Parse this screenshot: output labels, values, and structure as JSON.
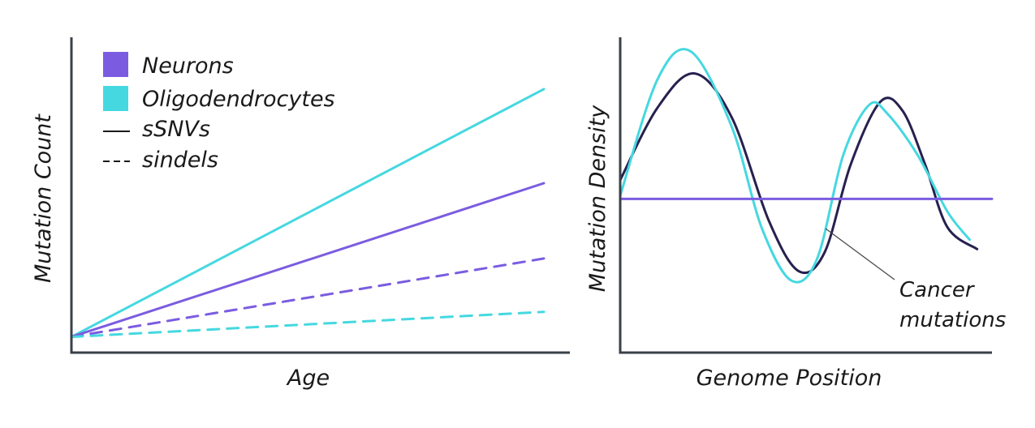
{
  "colors": {
    "neurons": "#7b5ce0",
    "oligodendrocytes": "#45d8e0",
    "cancer": "#26214f",
    "axis": "#3a3f48",
    "text": "#1a1a1a"
  },
  "chart_data": [
    {
      "type": "line",
      "title": "",
      "xlabel": "Age",
      "ylabel": "Mutation Count",
      "grid": false,
      "legend_position": "top-left",
      "legend": [
        {
          "label": "Neurons",
          "marker": "swatch",
          "color": "#7b5ce0"
        },
        {
          "label": "Oligodendrocytes",
          "marker": "swatch",
          "color": "#45d8e0"
        },
        {
          "label": "sSNVs",
          "marker": "solid-line"
        },
        {
          "label": "sindels",
          "marker": "dashed-line"
        }
      ],
      "xlim": [
        0,
        1
      ],
      "ylim": [
        0,
        1
      ],
      "series": [
        {
          "cell": "Oligodendrocytes",
          "type": "sSNVs",
          "style": "solid",
          "color": "#45d8e0",
          "x": [
            0,
            1
          ],
          "y": [
            0.05,
            0.84
          ]
        },
        {
          "cell": "Neurons",
          "type": "sSNVs",
          "style": "solid",
          "color": "#7b5ce0",
          "x": [
            0,
            1
          ],
          "y": [
            0.05,
            0.54
          ]
        },
        {
          "cell": "Neurons",
          "type": "sindels",
          "style": "dashed",
          "color": "#7b5ce0",
          "x": [
            0,
            1
          ],
          "y": [
            0.05,
            0.3
          ]
        },
        {
          "cell": "Oligodendrocytes",
          "type": "sindels",
          "style": "dashed",
          "color": "#45d8e0",
          "x": [
            0,
            1
          ],
          "y": [
            0.05,
            0.13
          ]
        }
      ]
    },
    {
      "type": "line",
      "title": "",
      "xlabel": "Genome Position",
      "ylabel": "Mutation Density",
      "grid": false,
      "xlim": [
        0,
        1
      ],
      "ylim": [
        0,
        1
      ],
      "annotations": [
        {
          "text": [
            "Cancer",
            "mutations"
          ],
          "points_to": "Cancer mutations curve near first trough rise"
        }
      ],
      "series": [
        {
          "name": "Cancer mutations",
          "style": "solid",
          "color": "#26214f",
          "x": [
            0,
            0.1,
            0.2,
            0.3,
            0.4,
            0.48,
            0.55,
            0.62,
            0.7,
            0.76,
            0.82,
            0.88,
            0.96
          ],
          "y": [
            0.55,
            0.78,
            0.89,
            0.75,
            0.42,
            0.26,
            0.32,
            0.6,
            0.8,
            0.77,
            0.6,
            0.4,
            0.33
          ]
        },
        {
          "name": "Oligodendrocytes",
          "style": "solid",
          "color": "#45d8e0",
          "x": [
            0,
            0.1,
            0.19,
            0.3,
            0.38,
            0.46,
            0.53,
            0.6,
            0.67,
            0.72,
            0.8,
            0.88,
            0.94
          ],
          "y": [
            0.5,
            0.87,
            0.96,
            0.72,
            0.4,
            0.23,
            0.3,
            0.63,
            0.79,
            0.76,
            0.63,
            0.45,
            0.36
          ]
        },
        {
          "name": "Neurons",
          "style": "solid",
          "color": "#7b5ce0",
          "x": [
            0,
            1
          ],
          "y": [
            0.49,
            0.49
          ]
        }
      ]
    }
  ]
}
